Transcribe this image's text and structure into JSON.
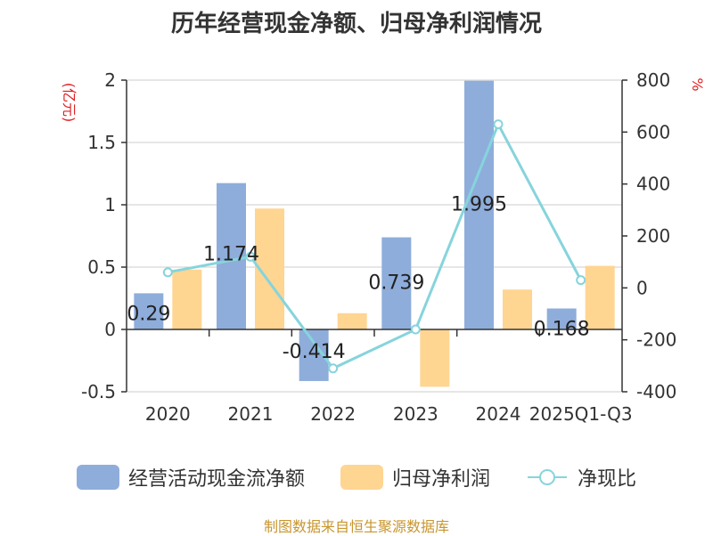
{
  "chart_data": {
    "type": "bar",
    "title": "历年经营现金净额、归母净利润情况",
    "categories": [
      "2020",
      "2021",
      "2022",
      "2023",
      "2024",
      "2025Q1-Q3"
    ],
    "series": [
      {
        "name": "经营活动现金流净额",
        "axis": "left",
        "kind": "bar",
        "values": [
          0.29,
          1.174,
          -0.414,
          0.739,
          1.995,
          0.168
        ],
        "color": "#8EADDB"
      },
      {
        "name": "归母净利润",
        "axis": "left",
        "kind": "bar",
        "values": [
          0.48,
          0.97,
          0.13,
          -0.46,
          0.32,
          0.51
        ],
        "color": "#FFD592"
      },
      {
        "name": "净现比",
        "axis": "right",
        "kind": "line",
        "values": [
          60,
          120,
          -310,
          -160,
          630,
          30
        ],
        "color": "#86D4DC"
      }
    ],
    "data_labels": [
      "0.29",
      "1.174",
      "-0.414",
      "0.739",
      "1.995",
      "0.168"
    ],
    "left_axis": {
      "label": "(亿元)",
      "ylim": [
        -0.5,
        2
      ],
      "ticks": [
        "-0.5",
        "0",
        "0.5",
        "1",
        "1.5",
        "2"
      ],
      "tick_values": [
        -0.5,
        0,
        0.5,
        1,
        1.5,
        2
      ]
    },
    "right_axis": {
      "label": "%",
      "ylim": [
        -400,
        800
      ],
      "ticks": [
        "-400",
        "-200",
        "0",
        "200",
        "400",
        "600",
        "800"
      ],
      "tick_values": [
        -400,
        -200,
        0,
        200,
        400,
        600,
        800
      ]
    },
    "grid": true,
    "legend_position": "bottom"
  },
  "legend": {
    "item1": "经营活动现金流净额",
    "item2": "归母净利润",
    "item3": "净现比"
  },
  "colors": {
    "bar1": "#8EADDB",
    "bar2": "#FFD592",
    "line": "#86D4DC",
    "axis_label": "#E02020",
    "source": "#C8962E",
    "text": "#333333"
  },
  "source": "制图数据来自恒生聚源数据库"
}
